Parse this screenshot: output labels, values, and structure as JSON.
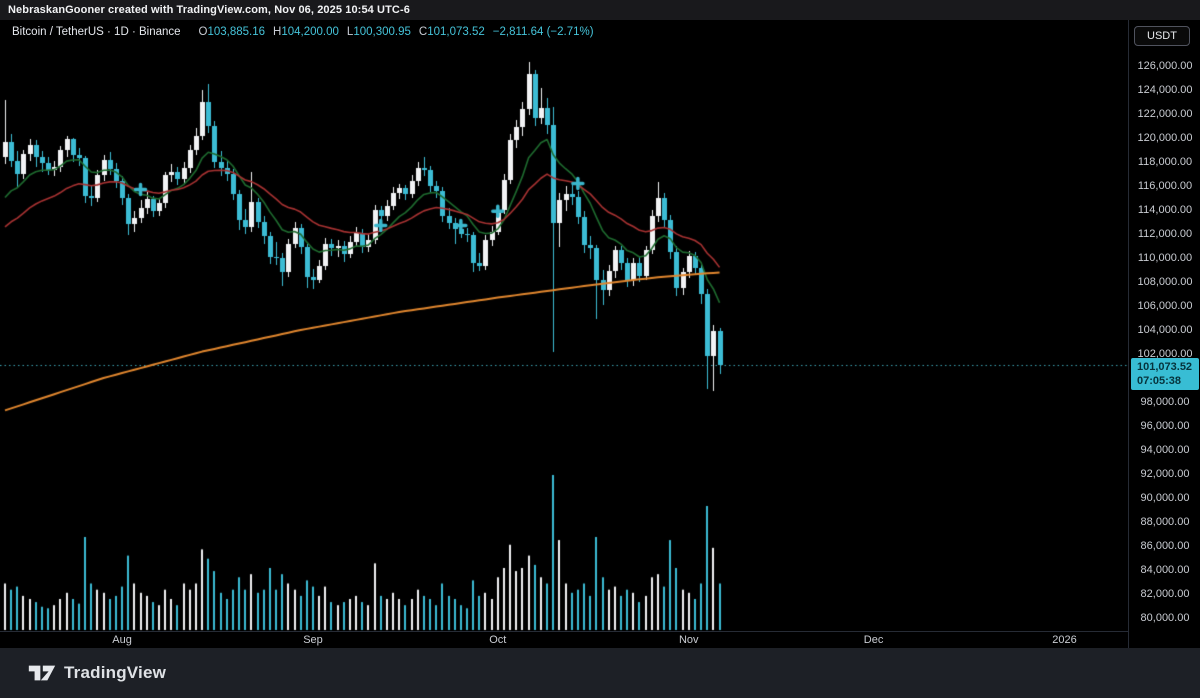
{
  "attribution": {
    "text": "NebraskanGooner created with TradingView.com, Nov 06, 2025 10:54 UTC-6"
  },
  "header": {
    "title": "Bitcoin / TetherUS · 1D · Binance",
    "ohlc": [
      {
        "label": "O",
        "value": "103,885.16"
      },
      {
        "label": "H",
        "value": "104,200.00"
      },
      {
        "label": "L",
        "value": "100,300.95"
      },
      {
        "label": "C",
        "value": "101,073.52"
      }
    ],
    "change": "−2,811.64 (−2.71%)"
  },
  "axis": {
    "currency_button": "USDT",
    "price_min": 80000,
    "price_max": 126000,
    "price_step": 2000,
    "months": [
      {
        "label": "Aug",
        "bar": 19
      },
      {
        "label": "Sep",
        "bar": 50
      },
      {
        "label": "Oct",
        "bar": 80
      },
      {
        "label": "Nov",
        "bar": 111
      },
      {
        "label": "Dec",
        "bar": 141
      },
      {
        "label": "2026",
        "bar": 172
      }
    ]
  },
  "price_line": {
    "value": 101073.52,
    "label": "101,073.52",
    "countdown": "07:05:38"
  },
  "footer": {
    "brand": "TradingView"
  },
  "colors": {
    "up": "#f2f3f5",
    "down": "#3cbcd4",
    "badge": "#38bdd4",
    "ma_fast_green": "#1e6b2f",
    "ma_mid_red": "#a83232",
    "ma_slow_orange": "#e0862e",
    "price_dotted": "#3da4b4",
    "marker": "#3ab6cc"
  },
  "chart_data": {
    "type": "candlestick",
    "title": "Bitcoin / TetherUS 1D Binance",
    "units": "USD thousands",
    "price_axis_range_usd": [
      80000,
      126000
    ],
    "grid": false,
    "candles_ohlcv_k": [
      [
        118.4,
        123.2,
        117.8,
        119.7,
        30
      ],
      [
        119.7,
        120.3,
        117.6,
        118.1,
        26
      ],
      [
        118.1,
        118.9,
        115.9,
        117.0,
        28
      ],
      [
        117.0,
        119.0,
        116.6,
        118.7,
        22
      ],
      [
        118.7,
        119.9,
        118.1,
        119.4,
        20
      ],
      [
        119.4,
        119.8,
        117.6,
        118.4,
        18
      ],
      [
        118.4,
        118.9,
        117.2,
        117.9,
        15
      ],
      [
        117.9,
        118.4,
        116.9,
        117.3,
        14
      ],
      [
        117.3,
        118.1,
        116.8,
        117.6,
        16
      ],
      [
        117.6,
        119.3,
        117.2,
        119.0,
        20
      ],
      [
        119.0,
        120.2,
        118.4,
        119.9,
        24
      ],
      [
        119.9,
        120.0,
        118.0,
        118.6,
        20
      ],
      [
        118.6,
        119.2,
        117.7,
        118.3,
        17
      ],
      [
        118.3,
        118.5,
        114.6,
        115.2,
        60
      ],
      [
        115.2,
        116.1,
        114.3,
        115.0,
        30
      ],
      [
        115.0,
        117.3,
        114.7,
        116.9,
        26
      ],
      [
        116.9,
        118.6,
        116.4,
        118.2,
        24
      ],
      [
        118.2,
        118.8,
        116.9,
        117.4,
        20
      ],
      [
        117.4,
        117.9,
        115.8,
        116.4,
        22
      ],
      [
        116.4,
        116.8,
        114.4,
        115.0,
        28
      ],
      [
        115.0,
        115.3,
        111.9,
        112.8,
        48
      ],
      [
        112.8,
        113.9,
        112.2,
        113.3,
        30
      ],
      [
        113.3,
        114.8,
        112.9,
        114.2,
        24
      ],
      [
        114.2,
        115.5,
        113.7,
        114.9,
        22
      ],
      [
        114.9,
        115.2,
        113.4,
        113.9,
        18
      ],
      [
        113.9,
        115.0,
        113.5,
        114.6,
        16
      ],
      [
        114.6,
        117.2,
        114.2,
        116.9,
        26
      ],
      [
        116.9,
        117.8,
        116.3,
        117.2,
        20
      ],
      [
        117.2,
        117.6,
        116.1,
        116.6,
        16
      ],
      [
        116.6,
        118.0,
        116.2,
        117.5,
        30
      ],
      [
        117.5,
        119.4,
        117.1,
        119.0,
        26
      ],
      [
        119.0,
        120.8,
        118.6,
        120.2,
        30
      ],
      [
        120.2,
        124.0,
        119.8,
        123.0,
        52
      ],
      [
        123.0,
        124.5,
        120.4,
        121.0,
        46
      ],
      [
        121.0,
        121.4,
        117.5,
        118.0,
        38
      ],
      [
        118.0,
        118.9,
        116.8,
        117.5,
        24
      ],
      [
        117.5,
        118.2,
        116.4,
        117.0,
        20
      ],
      [
        117.0,
        117.4,
        114.8,
        115.3,
        26
      ],
      [
        115.3,
        115.7,
        112.3,
        113.2,
        34
      ],
      [
        113.2,
        114.1,
        112.0,
        112.6,
        26
      ],
      [
        112.6,
        117.2,
        112.2,
        114.7,
        36
      ],
      [
        114.7,
        115.0,
        112.5,
        113.0,
        24
      ],
      [
        113.0,
        113.5,
        111.2,
        111.8,
        26
      ],
      [
        111.8,
        112.2,
        109.5,
        110.1,
        40
      ],
      [
        110.1,
        111.3,
        109.4,
        110.0,
        26
      ],
      [
        110.0,
        110.4,
        107.7,
        108.8,
        36
      ],
      [
        108.8,
        111.6,
        108.4,
        111.2,
        30
      ],
      [
        111.2,
        113.0,
        110.8,
        112.5,
        26
      ],
      [
        112.5,
        112.8,
        110.3,
        110.9,
        22
      ],
      [
        110.9,
        111.2,
        107.5,
        108.4,
        32
      ],
      [
        108.4,
        109.1,
        107.4,
        108.2,
        28
      ],
      [
        108.2,
        109.8,
        107.9,
        109.3,
        22
      ],
      [
        109.3,
        111.7,
        109.0,
        111.2,
        28
      ],
      [
        111.2,
        111.6,
        110.2,
        110.8,
        18
      ],
      [
        110.8,
        111.5,
        110.1,
        111.0,
        16
      ],
      [
        111.0,
        111.4,
        109.7,
        110.3,
        18
      ],
      [
        110.3,
        111.8,
        110.0,
        111.3,
        20
      ],
      [
        111.3,
        112.6,
        110.9,
        112.1,
        22
      ],
      [
        112.1,
        112.4,
        110.4,
        110.9,
        18
      ],
      [
        110.9,
        112.0,
        110.5,
        111.5,
        16
      ],
      [
        111.5,
        114.4,
        111.2,
        114.0,
        43
      ],
      [
        114.0,
        114.3,
        112.9,
        113.5,
        22
      ],
      [
        113.5,
        114.8,
        113.1,
        114.3,
        20
      ],
      [
        114.3,
        115.9,
        114.0,
        115.4,
        24
      ],
      [
        115.4,
        116.2,
        114.9,
        115.8,
        20
      ],
      [
        115.8,
        116.1,
        114.8,
        115.3,
        16
      ],
      [
        115.3,
        116.9,
        115.0,
        116.4,
        20
      ],
      [
        116.4,
        118.0,
        116.0,
        117.5,
        26
      ],
      [
        117.5,
        118.4,
        116.8,
        117.3,
        22
      ],
      [
        117.3,
        117.7,
        115.5,
        116.0,
        20
      ],
      [
        116.0,
        116.4,
        115.0,
        115.6,
        16
      ],
      [
        115.6,
        115.9,
        113.0,
        113.5,
        30
      ],
      [
        113.5,
        114.2,
        112.4,
        112.9,
        22
      ],
      [
        112.9,
        113.3,
        111.2,
        112.4,
        20
      ],
      [
        112.4,
        113.1,
        111.7,
        112.0,
        16
      ],
      [
        112.0,
        112.5,
        111.3,
        111.9,
        14
      ],
      [
        111.9,
        112.2,
        108.8,
        109.6,
        32
      ],
      [
        109.6,
        110.4,
        108.9,
        109.3,
        22
      ],
      [
        109.3,
        111.9,
        109.0,
        111.5,
        24
      ],
      [
        111.5,
        112.7,
        111.0,
        112.2,
        20
      ],
      [
        112.2,
        114.4,
        111.9,
        114.0,
        34
      ],
      [
        114.0,
        117.0,
        113.7,
        116.5,
        40
      ],
      [
        116.5,
        120.3,
        116.2,
        119.8,
        55
      ],
      [
        119.8,
        121.5,
        119.2,
        120.9,
        38
      ],
      [
        120.9,
        123.0,
        120.2,
        122.4,
        40
      ],
      [
        122.4,
        126.3,
        121.9,
        125.3,
        48
      ],
      [
        125.3,
        125.7,
        121.0,
        121.7,
        42
      ],
      [
        121.7,
        124.2,
        121.2,
        122.5,
        34
      ],
      [
        122.5,
        123.3,
        120.3,
        121.1,
        30
      ],
      [
        121.1,
        122.6,
        102.2,
        112.9,
        100
      ],
      [
        112.9,
        115.4,
        110.9,
        114.8,
        58
      ],
      [
        114.8,
        116.0,
        113.9,
        115.3,
        30
      ],
      [
        115.3,
        116.3,
        114.4,
        115.1,
        24
      ],
      [
        115.1,
        115.6,
        112.8,
        113.4,
        26
      ],
      [
        113.4,
        113.9,
        110.4,
        111.1,
        30
      ],
      [
        111.1,
        111.8,
        109.9,
        110.8,
        22
      ],
      [
        110.8,
        111.1,
        104.9,
        108.2,
        60
      ],
      [
        108.2,
        109.0,
        106.1,
        107.3,
        34
      ],
      [
        107.3,
        109.4,
        106.8,
        108.9,
        26
      ],
      [
        108.9,
        111.0,
        108.3,
        110.7,
        28
      ],
      [
        110.7,
        111.0,
        109.0,
        109.6,
        22
      ],
      [
        109.6,
        110.0,
        107.6,
        108.2,
        26
      ],
      [
        108.2,
        110.0,
        107.7,
        109.6,
        24
      ],
      [
        109.6,
        110.2,
        108.0,
        108.5,
        18
      ],
      [
        108.5,
        111.0,
        108.2,
        110.7,
        22
      ],
      [
        110.7,
        114.0,
        110.3,
        113.5,
        34
      ],
      [
        113.5,
        116.3,
        113.0,
        115.0,
        36
      ],
      [
        115.0,
        115.4,
        112.6,
        113.2,
        28
      ],
      [
        113.2,
        113.6,
        109.9,
        110.5,
        58
      ],
      [
        110.5,
        111.0,
        106.8,
        107.5,
        40
      ],
      [
        107.5,
        109.2,
        106.9,
        108.8,
        26
      ],
      [
        108.8,
        110.6,
        108.3,
        110.2,
        24
      ],
      [
        110.2,
        110.5,
        108.6,
        109.2,
        20
      ],
      [
        109.2,
        109.6,
        106.2,
        107.0,
        30
      ],
      [
        107.0,
        107.4,
        99.1,
        101.8,
        80
      ],
      [
        101.8,
        104.4,
        98.9,
        103.9,
        53
      ],
      [
        103.885,
        104.2,
        100.3,
        101.073,
        30
      ]
    ],
    "last_price_usd": 101073.52,
    "markers_plus": [
      {
        "bar": 22,
        "price_k": 115.7
      },
      {
        "bar": 61,
        "price_k": 112.7
      },
      {
        "bar": 74,
        "price_k": 112.7
      },
      {
        "bar": 80,
        "price_k": 113.9
      },
      {
        "bar": 93,
        "price_k": 116.2
      }
    ],
    "moving_averages": {
      "fast": {
        "type": "ema",
        "length": 10,
        "seed_k": 114.0
      },
      "mid": {
        "type": "ema",
        "length": 25,
        "seed_k": 112.0
      },
      "slow": {
        "type": "anchors",
        "points_bar_priceK": [
          [
            0,
            97.3
          ],
          [
            16,
            100.0
          ],
          [
            32,
            102.2
          ],
          [
            48,
            104.0
          ],
          [
            64,
            105.5
          ],
          [
            80,
            106.7
          ],
          [
            96,
            107.8
          ],
          [
            106,
            108.4
          ],
          [
            116,
            108.8
          ]
        ]
      }
    }
  }
}
